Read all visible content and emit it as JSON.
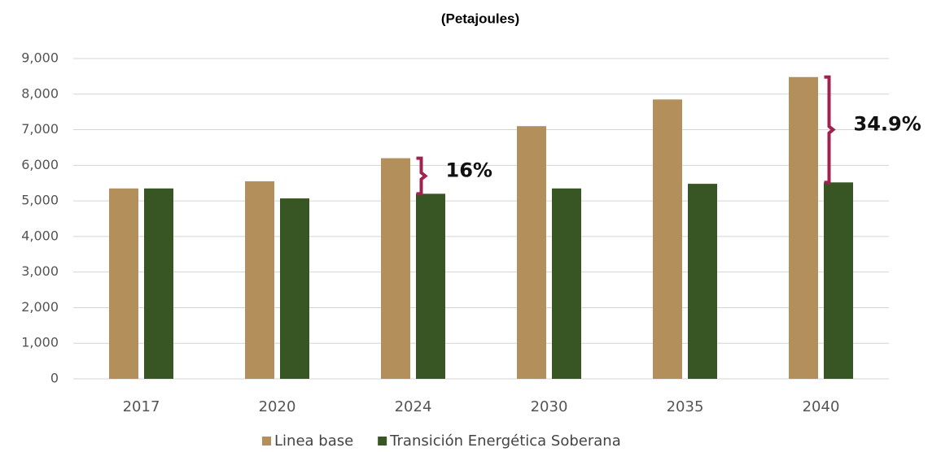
{
  "chart_data": {
    "type": "bar",
    "title": "(Petajoules)",
    "categories": [
      "2017",
      "2020",
      "2024",
      "2030",
      "2035",
      "2040"
    ],
    "series": [
      {
        "name": "Linea base",
        "color": "#b38f5b",
        "values": [
          5350,
          5550,
          6200,
          7100,
          7850,
          8480
        ]
      },
      {
        "name": "Transición Energética Soberana",
        "color": "#375623",
        "values": [
          5350,
          5070,
          5200,
          5350,
          5480,
          5520
        ]
      }
    ],
    "ylim": [
      0,
      9000
    ],
    "yticks": [
      0,
      {
        "value": 1000,
        "label": "1,000"
      },
      {
        "value": 2000,
        "label": "2,000"
      },
      {
        "value": 3000,
        "label": "3,000"
      },
      {
        "value": 4000,
        "label": "4,000"
      },
      {
        "value": 5000,
        "label": "5,000"
      },
      {
        "value": 6000,
        "label": "6,000"
      },
      {
        "value": 7000,
        "label": "7,000"
      },
      {
        "value": 8000,
        "label": "8,000"
      },
      {
        "value": 9000,
        "label": "9,000"
      }
    ],
    "grid": true,
    "annotations": [
      {
        "text": "16%",
        "category": "2024",
        "color": "#a0224f"
      },
      {
        "text": "34.9%",
        "category": "2040",
        "color": "#a0224f"
      }
    ],
    "legend": "bottom"
  }
}
